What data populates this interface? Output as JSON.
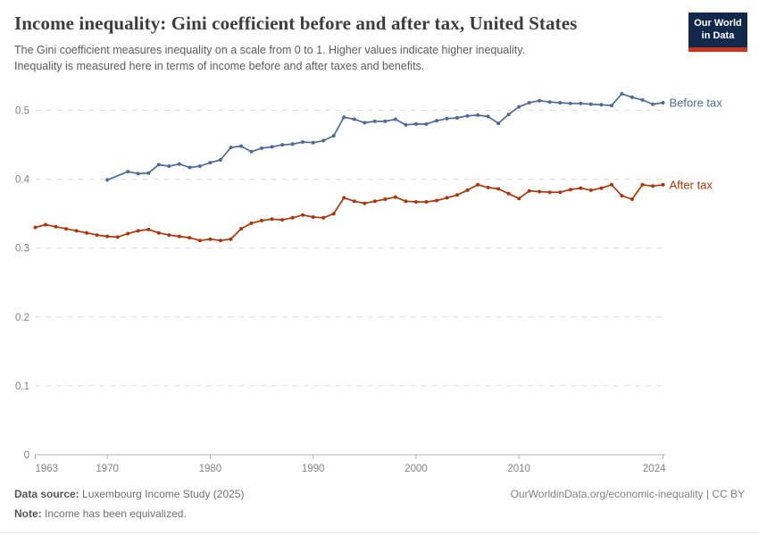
{
  "header": {
    "title": "Income inequality: Gini coefficient before and after tax, United States",
    "subtitle_line1": "The Gini coefficient measures inequality on a scale from 0 to 1. Higher values indicate higher inequality.",
    "subtitle_line2": "Inequality is measured here in terms of income before and after taxes and benefits.",
    "logo": {
      "line1": "Our World",
      "line2": "in Data",
      "bg_color": "#12294b",
      "accent_color": "#c8361f"
    }
  },
  "chart_data": {
    "type": "line",
    "title": "Income inequality: Gini coefficient before and after tax, United States",
    "xlabel": "",
    "ylabel": "",
    "ylim": [
      0,
      0.55
    ],
    "yticks": [
      0,
      0.1,
      0.2,
      0.3,
      0.4,
      0.5
    ],
    "xticks": [
      1963,
      1970,
      1980,
      1990,
      2000,
      2010,
      2024
    ],
    "grid": "horizontal-dashed",
    "legend_position": "line-end-labels",
    "x": [
      1963,
      1964,
      1965,
      1966,
      1967,
      1968,
      1969,
      1970,
      1971,
      1972,
      1973,
      1974,
      1975,
      1976,
      1977,
      1978,
      1979,
      1980,
      1981,
      1982,
      1983,
      1984,
      1985,
      1986,
      1987,
      1988,
      1989,
      1990,
      1991,
      1992,
      1993,
      1994,
      1995,
      1996,
      1997,
      1998,
      1999,
      2000,
      2001,
      2002,
      2003,
      2004,
      2005,
      2006,
      2007,
      2008,
      2009,
      2010,
      2011,
      2012,
      2013,
      2014,
      2015,
      2016,
      2017,
      2018,
      2019,
      2020,
      2021,
      2022,
      2023,
      2024
    ],
    "series": [
      {
        "name": "Before tax",
        "color": "#4c6a9c",
        "values": [
          null,
          null,
          null,
          null,
          null,
          null,
          null,
          0.399,
          null,
          0.411,
          0.408,
          0.409,
          0.421,
          0.419,
          0.422,
          0.417,
          0.419,
          0.424,
          0.428,
          0.446,
          0.448,
          0.44,
          0.445,
          0.447,
          0.45,
          0.451,
          0.454,
          0.453,
          0.456,
          0.463,
          0.49,
          0.487,
          0.482,
          0.484,
          0.484,
          0.487,
          0.479,
          0.48,
          0.48,
          0.485,
          0.488,
          0.489,
          0.492,
          0.493,
          0.491,
          0.481,
          0.494,
          0.505,
          0.511,
          0.514,
          0.512,
          0.511,
          0.51,
          0.51,
          0.509,
          0.508,
          0.507,
          0.524,
          0.519,
          0.515,
          0.509,
          0.511
        ]
      },
      {
        "name": "After tax",
        "color": "#b13507",
        "values": [
          0.33,
          0.334,
          0.331,
          0.328,
          0.325,
          0.322,
          0.319,
          0.317,
          0.316,
          0.321,
          0.325,
          0.327,
          0.322,
          0.319,
          0.317,
          0.315,
          0.311,
          0.313,
          0.311,
          0.313,
          0.328,
          0.336,
          0.34,
          0.342,
          0.341,
          0.344,
          0.348,
          0.345,
          0.344,
          0.35,
          0.373,
          0.368,
          0.365,
          0.368,
          0.371,
          0.374,
          0.368,
          0.367,
          0.367,
          0.369,
          0.373,
          0.377,
          0.384,
          0.392,
          0.388,
          0.386,
          0.379,
          0.372,
          0.383,
          0.382,
          0.381,
          0.381,
          0.385,
          0.387,
          0.384,
          0.387,
          0.392,
          0.376,
          0.371,
          0.392,
          0.39,
          0.392
        ]
      }
    ]
  },
  "footer": {
    "datasource_label": "Data source:",
    "datasource_value": " Luxembourg Income Study (2025)",
    "note_label": "Note:",
    "note_value": " Income has been equivalized.",
    "rights": "OurWorldinData.org/economic-inequality | CC BY"
  }
}
